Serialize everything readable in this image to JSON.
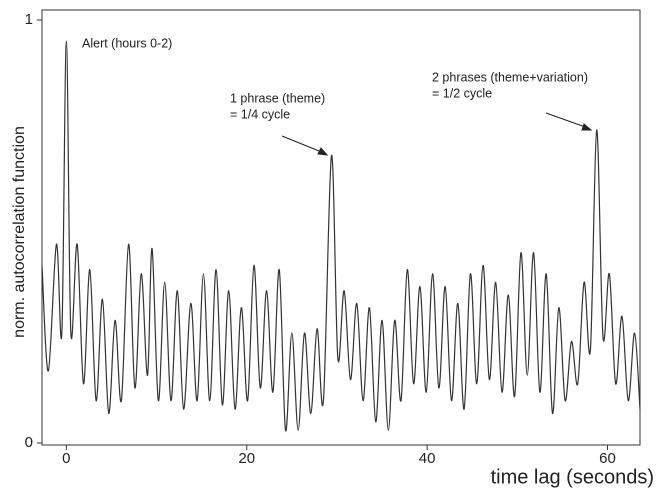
{
  "chart_data": {
    "type": "line",
    "x_label": "time lag (seconds)",
    "y_label": "norm. autocorrelation function",
    "annotations": [
      "Alert (hours 0-2)",
      "1 phrase (theme)",
      "= 1/4 cycle",
      "2 phrases (theme+variation)",
      "= 1/2 cycle"
    ],
    "xlim": [
      -2.7,
      63.6
    ],
    "ylim": [
      0,
      1
    ],
    "xticks": [
      0,
      20,
      40,
      60
    ],
    "yticks": [
      0,
      1
    ],
    "color": "#333333",
    "x": [
      -2.7,
      -2.0,
      -1.1,
      -0.5,
      0,
      0.5,
      1.2,
      1.9,
      2.6,
      3.3,
      4.0,
      4.7,
      5.4,
      6.1,
      6.9,
      7.6,
      8.3,
      9.0,
      9.5,
      10.2,
      10.9,
      11.6,
      12.3,
      13.0,
      13.8,
      14.5,
      15.2,
      15.9,
      16.6,
      17.3,
      18.0,
      18.7,
      19.4,
      20.1,
      20.8,
      21.5,
      22.2,
      22.9,
      23.6,
      24.3,
      25.0,
      25.7,
      26.4,
      27.1,
      27.8,
      28.5,
      29.4,
      30.1,
      30.8,
      31.5,
      32.2,
      32.9,
      33.6,
      34.3,
      35.0,
      35.7,
      36.4,
      37.1,
      37.8,
      38.5,
      39.2,
      39.9,
      40.6,
      41.3,
      42.0,
      42.7,
      43.4,
      44.1,
      44.8,
      45.5,
      46.2,
      46.9,
      47.6,
      48.3,
      49.0,
      49.7,
      50.4,
      51.1,
      51.8,
      52.5,
      53.2,
      53.9,
      54.6,
      55.3,
      56.0,
      56.7,
      57.4,
      58.1,
      58.8,
      59.5,
      60.2,
      60.9,
      61.6,
      62.3,
      63.0,
      63.6
    ],
    "values": [
      0.42,
      0.17,
      0.47,
      0.26,
      0.95,
      0.26,
      0.47,
      0.14,
      0.41,
      0.1,
      0.34,
      0.07,
      0.29,
      0.1,
      0.47,
      0.13,
      0.4,
      0.16,
      0.46,
      0.1,
      0.38,
      0.1,
      0.36,
      0.08,
      0.33,
      0.1,
      0.4,
      0.1,
      0.41,
      0.09,
      0.36,
      0.08,
      0.32,
      0.1,
      0.42,
      0.13,
      0.36,
      0.12,
      0.41,
      0.03,
      0.26,
      0.03,
      0.26,
      0.07,
      0.27,
      0.1,
      0.68,
      0.2,
      0.36,
      0.15,
      0.33,
      0.1,
      0.32,
      0.05,
      0.29,
      0.03,
      0.29,
      0.1,
      0.41,
      0.14,
      0.37,
      0.12,
      0.4,
      0.13,
      0.37,
      0.1,
      0.33,
      0.08,
      0.4,
      0.14,
      0.42,
      0.15,
      0.38,
      0.12,
      0.35,
      0.11,
      0.45,
      0.16,
      0.45,
      0.12,
      0.4,
      0.07,
      0.32,
      0.1,
      0.24,
      0.14,
      0.38,
      0.22,
      0.74,
      0.25,
      0.4,
      0.14,
      0.3,
      0.1,
      0.26,
      0.08
    ]
  }
}
